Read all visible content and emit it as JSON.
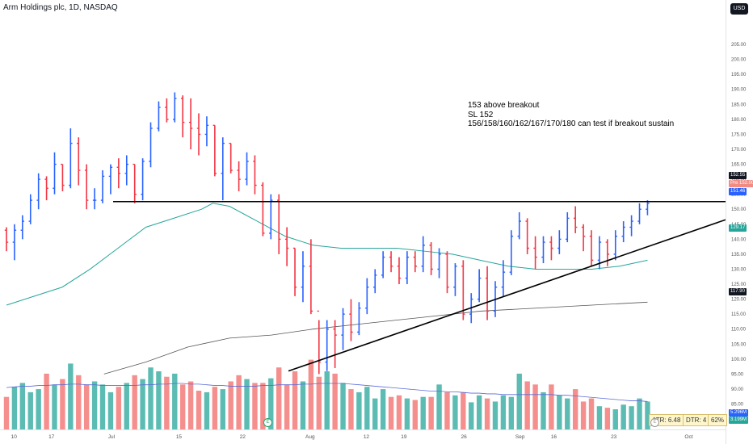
{
  "header": {
    "title": "Arm Holdings plc, 1D, NASDAQ",
    "currency": "USD"
  },
  "annotation": {
    "lines": [
      "153 above breakout",
      "SL 152",
      "156/158/160/162/167/170/180 can test if breakout sustain"
    ]
  },
  "indicators": {
    "atr": "ATR: 6.48",
    "dtr": "DTR: 4",
    "ratio": "62%"
  },
  "price_labels": [
    {
      "text": "152.55",
      "color": "#131722",
      "level": 152.55
    },
    {
      "text": "Pre 152.00",
      "color": "#f28b82",
      "level": 152.0
    },
    {
      "text": "151.46",
      "color": "#2962ff",
      "level": 151.46
    },
    {
      "text": "129.17",
      "color": "#26a69a",
      "level": 129.17
    },
    {
      "text": "117.90",
      "color": "#131722",
      "level": 117.9
    }
  ],
  "volume_labels": [
    {
      "text": "5.296M",
      "color": "#2962ff"
    },
    {
      "text": "3.199M",
      "color": "#26a69a"
    }
  ],
  "badges": [
    "E",
    "E"
  ],
  "chart_data": {
    "type": "ohlc",
    "ylim": [
      85,
      210
    ],
    "y_ticks": [
      85,
      90,
      95,
      100,
      105,
      110,
      115,
      120,
      125,
      130,
      135,
      140,
      145,
      150,
      155,
      160,
      165,
      170,
      175,
      180,
      185,
      190,
      195,
      200,
      205
    ],
    "x_tick_labels": [
      "10",
      "17",
      "Jul",
      "15",
      "22",
      "Aug",
      "12",
      "19",
      "26",
      "Sep",
      "16",
      "23",
      "Oct",
      "14",
      "21"
    ],
    "bars": [
      [
        143,
        144,
        136,
        139
      ],
      [
        139,
        145,
        133,
        143
      ],
      [
        143,
        148,
        140,
        146
      ],
      [
        146,
        155,
        145,
        153
      ],
      [
        153,
        162,
        150,
        160
      ],
      [
        160,
        161,
        153,
        157
      ],
      [
        157,
        169,
        155,
        165
      ],
      [
        165,
        165,
        156,
        158
      ],
      [
        158,
        177,
        157,
        172
      ],
      [
        172,
        174,
        158,
        163
      ],
      [
        163,
        165,
        150,
        153
      ],
      [
        153,
        157,
        150,
        153
      ],
      [
        153,
        163,
        152,
        161
      ],
      [
        161,
        165,
        155,
        164
      ],
      [
        164,
        167,
        157,
        162
      ],
      [
        162,
        168,
        158,
        165
      ],
      [
        165,
        165,
        152,
        155
      ],
      [
        155,
        167,
        153,
        166
      ],
      [
        166,
        179,
        164,
        177
      ],
      [
        177,
        186,
        176,
        184
      ],
      [
        184,
        187,
        179,
        180
      ],
      [
        180,
        189,
        179,
        187
      ],
      [
        187,
        188,
        174,
        179
      ],
      [
        179,
        187,
        170,
        177
      ],
      [
        177,
        182,
        168,
        175
      ],
      [
        175,
        181,
        171,
        178
      ],
      [
        178,
        178,
        161,
        162
      ],
      [
        162,
        174,
        153,
        172
      ],
      [
        172,
        172,
        162,
        163
      ],
      [
        163,
        166,
        156,
        160
      ],
      [
        160,
        169,
        158,
        166
      ],
      [
        166,
        168,
        155,
        158
      ],
      [
        158,
        159,
        141,
        142
      ],
      [
        142,
        155,
        140,
        153
      ],
      [
        153,
        155,
        135,
        140
      ],
      [
        140,
        144,
        131,
        137
      ],
      [
        137,
        137,
        121,
        124
      ],
      [
        124,
        136,
        119,
        131
      ],
      [
        131,
        140,
        115,
        116
      ],
      [
        116,
        113,
        95,
        99
      ],
      [
        99,
        113,
        96,
        110
      ],
      [
        110,
        113,
        97,
        108
      ],
      [
        108,
        117,
        103,
        115
      ],
      [
        115,
        120,
        106,
        109
      ],
      [
        109,
        119,
        108,
        117
      ],
      [
        117,
        127,
        115,
        124
      ],
      [
        124,
        130,
        122,
        128
      ],
      [
        128,
        136,
        127,
        134
      ],
      [
        134,
        136,
        129,
        131
      ],
      [
        131,
        134,
        125,
        127
      ],
      [
        127,
        136,
        125,
        134
      ],
      [
        134,
        136,
        129,
        131
      ],
      [
        131,
        141,
        129,
        138
      ],
      [
        138,
        139,
        128,
        130
      ],
      [
        130,
        137,
        127,
        135
      ],
      [
        135,
        136,
        122,
        124
      ],
      [
        124,
        132,
        121,
        131
      ],
      [
        131,
        133,
        113,
        115
      ],
      [
        115,
        122,
        112,
        120
      ],
      [
        120,
        130,
        119,
        127
      ],
      [
        127,
        131,
        113,
        116
      ],
      [
        116,
        126,
        114,
        124
      ],
      [
        124,
        133,
        121,
        129
      ],
      [
        129,
        143,
        128,
        141
      ],
      [
        141,
        149,
        140,
        146
      ],
      [
        146,
        147,
        135,
        137
      ],
      [
        137,
        141,
        130,
        134
      ],
      [
        134,
        141,
        132,
        139
      ],
      [
        139,
        141,
        133,
        137
      ],
      [
        137,
        143,
        135,
        140
      ],
      [
        140,
        149,
        139,
        147
      ],
      [
        147,
        151,
        142,
        144
      ],
      [
        144,
        145,
        136,
        141
      ],
      [
        141,
        143,
        131,
        133
      ],
      [
        133,
        141,
        130,
        139
      ],
      [
        139,
        140,
        131,
        135
      ],
      [
        135,
        143,
        133,
        141
      ],
      [
        141,
        146,
        139,
        144
      ],
      [
        144,
        148,
        141,
        146
      ],
      [
        146,
        152,
        145,
        150
      ],
      [
        150,
        153,
        148,
        152
      ]
    ],
    "sma": [
      [
        0,
        118
      ],
      [
        10,
        121
      ],
      [
        20,
        124
      ],
      [
        30,
        130
      ],
      [
        40,
        137
      ],
      [
        50,
        144
      ],
      [
        60,
        147
      ],
      [
        70,
        150
      ],
      [
        74,
        152
      ],
      [
        80,
        151
      ],
      [
        90,
        146
      ],
      [
        100,
        141
      ],
      [
        110,
        138
      ],
      [
        120,
        137
      ],
      [
        130,
        137
      ],
      [
        140,
        137
      ],
      [
        150,
        136
      ],
      [
        160,
        135
      ],
      [
        170,
        133
      ],
      [
        180,
        131
      ],
      [
        190,
        130
      ],
      [
        200,
        130
      ],
      [
        210,
        130
      ],
      [
        220,
        131
      ],
      [
        230,
        133
      ]
    ],
    "sma200": [
      [
        35,
        95
      ],
      [
        50,
        99
      ],
      [
        65,
        104
      ],
      [
        80,
        107
      ],
      [
        95,
        108
      ],
      [
        110,
        110
      ],
      [
        130,
        112
      ],
      [
        150,
        114
      ],
      [
        170,
        116
      ],
      [
        190,
        117
      ],
      [
        210,
        118
      ],
      [
        230,
        119
      ]
    ],
    "trendlines": [
      {
        "name": "resistance",
        "points": [
          [
            35,
            152.55
          ],
          [
            230,
            152.55
          ]
        ],
        "color": "#000000"
      },
      {
        "name": "rising-support",
        "points": [
          [
            40,
            96
          ],
          [
            262,
            146.5
          ]
        ],
        "color": "#000000"
      }
    ],
    "volume": [
      42,
      55,
      60,
      48,
      52,
      72,
      58,
      65,
      85,
      70,
      58,
      62,
      58,
      48,
      55,
      60,
      70,
      65,
      80,
      75,
      68,
      72,
      58,
      62,
      50,
      48,
      55,
      52,
      62,
      70,
      65,
      60,
      60,
      66,
      80,
      58,
      75,
      62,
      90,
      68,
      75,
      72,
      60,
      52,
      48,
      55,
      40,
      52,
      42,
      44,
      40,
      38,
      42,
      42,
      58,
      48,
      44,
      48,
      35,
      44,
      40,
      36,
      44,
      42,
      72,
      62,
      58,
      48,
      58,
      44,
      40,
      52,
      36,
      40,
      30,
      28,
      26,
      32,
      30,
      40,
      36
    ],
    "volume_ma": [
      60,
      61,
      62,
      62,
      63,
      63,
      64,
      64,
      65,
      65,
      64,
      64,
      63,
      63,
      63,
      63,
      63,
      64,
      64,
      65,
      65,
      66,
      66,
      65,
      65,
      64,
      63,
      63,
      62,
      62,
      62,
      62,
      63,
      63,
      64,
      64,
      64,
      65,
      65,
      66,
      66,
      66,
      66,
      65,
      64,
      63,
      62,
      61,
      60,
      59,
      58,
      57,
      56,
      55,
      55,
      54,
      54,
      53,
      52,
      52,
      51,
      51,
      50,
      50,
      50,
      50,
      50,
      50,
      50,
      49,
      49,
      48,
      47,
      46,
      45,
      44,
      43,
      42,
      41,
      41,
      40
    ]
  }
}
